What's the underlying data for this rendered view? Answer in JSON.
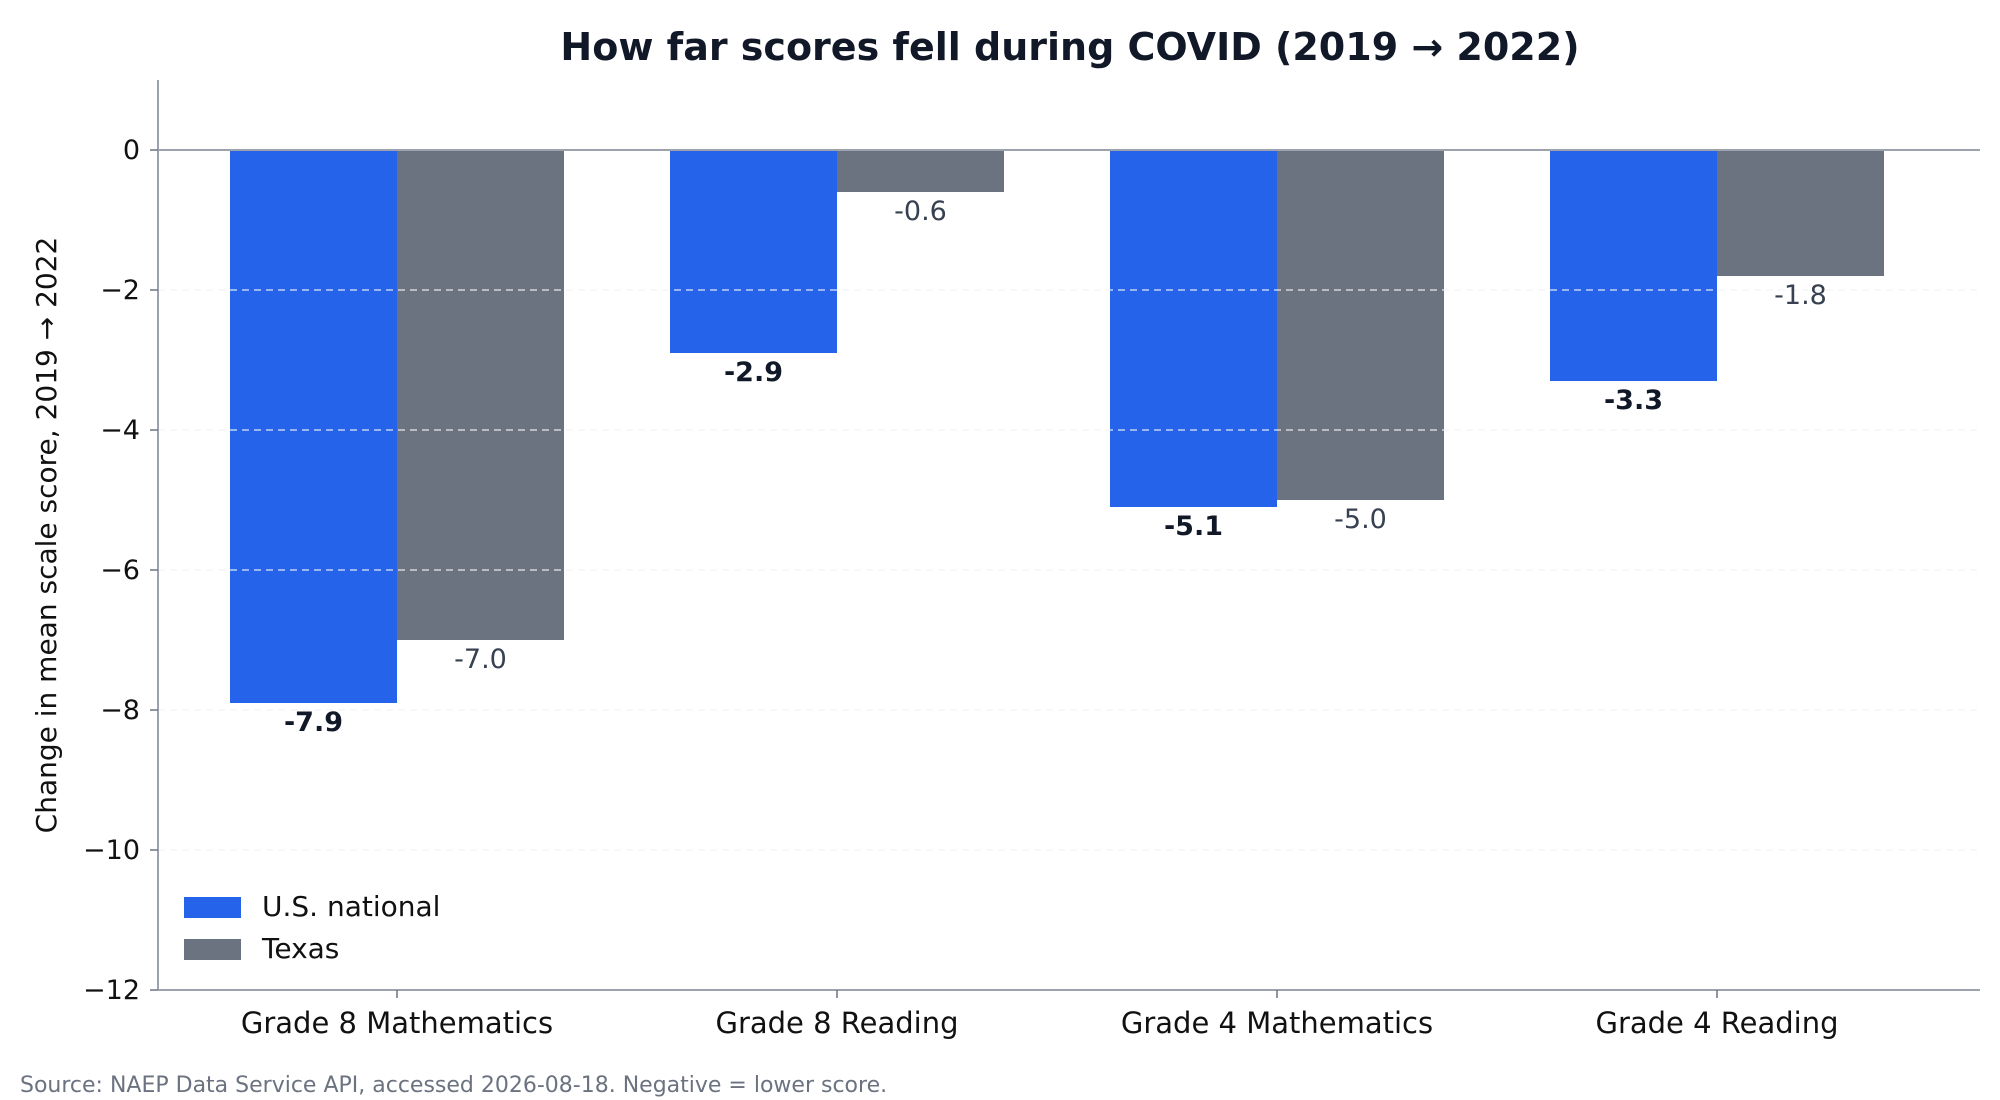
{
  "chart_data": {
    "type": "bar",
    "title": "How far scores fell during COVID (2019 → 2022)",
    "ylabel": "Change in mean scale score, 2019 → 2022",
    "xlabel": "",
    "categories": [
      "Grade 8 Mathematics",
      "Grade 8 Reading",
      "Grade 4 Mathematics",
      "Grade 4 Reading"
    ],
    "series": [
      {
        "name": "U.S. national",
        "values": [
          -7.9,
          -2.9,
          -5.1,
          -3.3
        ],
        "color": "#2563eb"
      },
      {
        "name": "Texas",
        "values": [
          -7.0,
          -0.6,
          -5.0,
          -1.8
        ],
        "color": "#6b7280"
      }
    ],
    "value_labels": {
      "U.S. national": [
        "-7.9",
        "-2.9",
        "-5.1",
        "-3.3"
      ],
      "Texas": [
        "-7.0",
        "-0.6",
        "-5.0",
        "-1.8"
      ]
    },
    "ylim": [
      -12,
      1
    ],
    "yticks": [
      0,
      -2,
      -4,
      -6,
      -8,
      -10,
      -12
    ],
    "ytick_labels": [
      "0",
      "−2",
      "−4",
      "−6",
      "−8",
      "−10",
      "−12"
    ],
    "grid": "horizontal dashed",
    "legend_position": "lower-left",
    "source_note": "Source: NAEP Data Service API, accessed 2026-08-18. Negative = lower score."
  }
}
